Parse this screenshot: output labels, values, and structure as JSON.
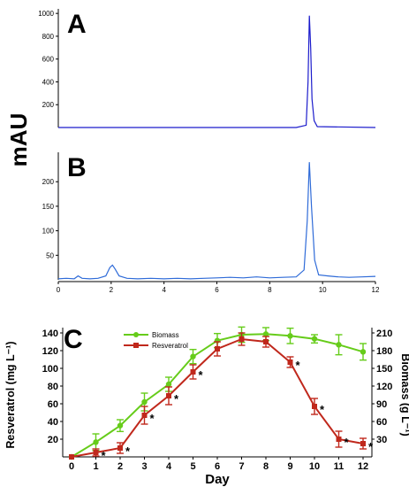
{
  "colors": {
    "chromatogram": "#1c1ccc",
    "chromatogram_b": "#2f6bd8",
    "biomass": "#66cc1a",
    "resveratrol": "#c0281c",
    "text": "#000000"
  },
  "shared": {
    "ylabel_ab": "mAU"
  },
  "chart_data": [
    {
      "type": "line",
      "panel_label": "A",
      "yticks": [
        200,
        400,
        600,
        800,
        1000
      ],
      "ylim": [
        0,
        1040
      ],
      "xlim": [
        0,
        12
      ],
      "series": [
        {
          "x": [
            0,
            9.0,
            9.38,
            9.45,
            9.5,
            9.55,
            9.6,
            9.68,
            9.8,
            12
          ],
          "y": [
            0,
            0,
            20,
            400,
            980,
            700,
            250,
            60,
            8,
            0
          ]
        }
      ]
    },
    {
      "type": "line",
      "panel_label": "B",
      "yticks": [
        50,
        100,
        150,
        200
      ],
      "xticks": [
        0,
        2,
        4,
        6,
        8,
        10,
        12
      ],
      "ylim": [
        0,
        260
      ],
      "xlim": [
        0,
        12
      ],
      "series": [
        {
          "x": [
            0,
            0.3,
            0.6,
            0.75,
            0.9,
            1.2,
            1.5,
            1.8,
            1.95,
            2.05,
            2.15,
            2.3,
            2.6,
            3.0,
            3.5,
            4.0,
            4.5,
            5.0,
            5.5,
            6.0,
            6.5,
            7.0,
            7.5,
            8.0,
            8.5,
            9.0,
            9.3,
            9.42,
            9.5,
            9.58,
            9.7,
            9.85,
            10.2,
            10.6,
            11.0,
            11.5,
            12
          ],
          "y": [
            2,
            3,
            2,
            8,
            3,
            2,
            3,
            8,
            25,
            30,
            22,
            8,
            3,
            2,
            3,
            2,
            3,
            2,
            3,
            4,
            5,
            4,
            6,
            4,
            5,
            6,
            20,
            120,
            240,
            150,
            40,
            10,
            8,
            6,
            5,
            6,
            7
          ]
        }
      ]
    },
    {
      "type": "line",
      "panel_label": "C",
      "xlabel": "Day",
      "ylabel_left": "Resveratrol (mg L⁻¹)",
      "ylabel_right": "Biomass  (g L⁻¹)",
      "x": [
        0,
        1,
        2,
        3,
        4,
        5,
        6,
        7,
        8,
        9,
        10,
        11,
        12
      ],
      "ylim_left": [
        0,
        140
      ],
      "ylim_right": [
        0,
        210
      ],
      "yticks_left": [
        20,
        40,
        60,
        80,
        100,
        120,
        140
      ],
      "yticks_right": [
        30,
        60,
        90,
        120,
        150,
        180,
        210
      ],
      "legend_position": "top-left",
      "series": [
        {
          "name": "Biomass",
          "axis": "right",
          "values": [
            0,
            25,
            53,
            93,
            123,
            170,
            197,
            207,
            208,
            205,
            200,
            190,
            178
          ],
          "errors": [
            0,
            14,
            10,
            15,
            12,
            12,
            12,
            13,
            11,
            13,
            7,
            17,
            14
          ]
        },
        {
          "name": "Resveratrol",
          "axis": "left",
          "values": [
            0,
            5,
            10,
            47,
            69,
            96,
            122,
            133,
            130,
            107,
            57,
            20,
            15
          ],
          "errors": [
            0,
            4,
            6,
            10,
            10,
            8,
            8,
            7,
            6,
            6,
            9,
            9,
            6
          ]
        }
      ],
      "significance_markers": [
        {
          "day": 1,
          "label": "*"
        },
        {
          "day": 2,
          "label": "*"
        },
        {
          "day": 3,
          "label": "*"
        },
        {
          "day": 4,
          "label": "*"
        },
        {
          "day": 5,
          "label": "*"
        },
        {
          "day": 9,
          "label": "*"
        },
        {
          "day": 10,
          "label": "*"
        },
        {
          "day": 11,
          "label": "*"
        },
        {
          "day": 12,
          "label": "*"
        }
      ]
    }
  ]
}
